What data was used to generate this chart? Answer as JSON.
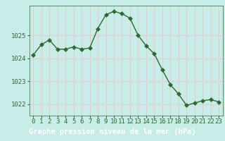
{
  "x": [
    0,
    1,
    2,
    3,
    4,
    5,
    6,
    7,
    8,
    9,
    10,
    11,
    12,
    13,
    14,
    15,
    16,
    17,
    18,
    19,
    20,
    21,
    22,
    23
  ],
  "y": [
    1024.15,
    1024.6,
    1024.8,
    1024.4,
    1024.4,
    1024.5,
    1024.4,
    1024.45,
    1025.3,
    1025.9,
    1026.05,
    1025.95,
    1025.75,
    1025.0,
    1024.55,
    1024.2,
    1023.5,
    1022.85,
    1022.45,
    1021.95,
    1022.05,
    1022.15,
    1022.2,
    1022.1
  ],
  "line_color": "#2d6a2d",
  "marker_color": "#2d6a2d",
  "bg_color": "#c8ece8",
  "grid_color": "#e8c8c8",
  "xlabel": "Graphe pression niveau de la mer (hPa)",
  "xlabel_bg": "#2d6a2d",
  "xlabel_text_color": "#ffffff",
  "tick_label_color": "#2d6a2d",
  "ylim": [
    1021.5,
    1026.3
  ],
  "yticks": [
    1022,
    1023,
    1024,
    1025
  ],
  "xticks": [
    0,
    1,
    2,
    3,
    4,
    5,
    6,
    7,
    8,
    9,
    10,
    11,
    12,
    13,
    14,
    15,
    16,
    17,
    18,
    19,
    20,
    21,
    22,
    23
  ],
  "xlabel_fontsize": 7.5,
  "tick_fontsize": 6.5,
  "line_width": 1.0,
  "marker_size": 4
}
